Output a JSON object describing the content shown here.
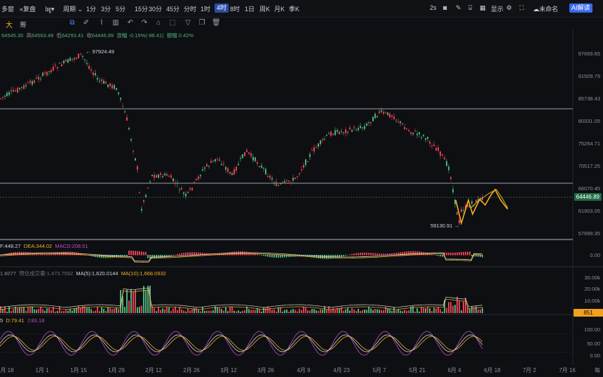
{
  "toolbar": {
    "left": "多窗",
    "replay": "复盘",
    "period": "周期",
    "intervals": [
      "1分",
      "3分",
      "5分",
      "15分",
      "30分",
      "45分",
      "分时",
      "1时",
      "4时",
      "8时",
      "1日",
      "周K",
      "月K",
      "季K"
    ],
    "active_interval": "4时",
    "right_2s": "2s",
    "display": "显示",
    "untitled": "未命名",
    "ai": "AI解读"
  },
  "drawbar": {
    "tab1": "大",
    "tab2": "筹",
    "icons": [
      "select-icon",
      "pen-icon",
      "ruler-icon",
      "layout-icon",
      "undo-icon",
      "redo-icon",
      "tag-icon",
      "cursor-icon",
      "filter-icon",
      "copy-icon",
      "trash-icon"
    ]
  },
  "ohlc": {
    "open": "64545.30",
    "high": "64563.48",
    "low": "64293.41",
    "close": "64446.89",
    "change": "涨幅 -0.15%(-98.41)",
    "amplitude": "振幅 0.42%"
  },
  "price_axis": [
    "97669.65",
    "91509.79",
    "85738.43",
    "80331.05",
    "75264.71",
    "70517.25",
    "66070.45",
    "61903.05",
    "57999.35"
  ],
  "current_price": "64446.89",
  "annotations": {
    "high": "97924.49",
    "low": "59130.91"
  },
  "macd": {
    "dif": "F:448.27",
    "dea": "DEA:344.02",
    "macd": "MACD:208.51",
    "axis": "0.00"
  },
  "volume": {
    "vol": "1.6077",
    "est": "预估成交量:1,473.7592",
    "ma5": "MA(5):1,620.0144",
    "ma10": "MA(10):1,668.0932",
    "axis": [
      "30.00k",
      "20.00k",
      "10.00k"
    ],
    "badge": "851"
  },
  "kdj": {
    "k": "5",
    "d": "D:79.41",
    "j": "J:83.18",
    "axis": [
      "100.00",
      "50.00",
      "0.00"
    ]
  },
  "dates": [
    "月 18",
    "1月 1",
    "1月 15",
    "1月 29",
    "2月 12",
    "2月 26",
    "3月 12",
    "3月 26",
    "4月 9",
    "4月 23",
    "5月 7",
    "5月 21",
    "6月 4",
    "6月 18",
    "7月 2",
    "7月 16",
    "每"
  ],
  "colors": {
    "up": "#4fb07a",
    "down": "#e0424f",
    "accent": "#f2b01e",
    "active": "#2a4ea8"
  }
}
